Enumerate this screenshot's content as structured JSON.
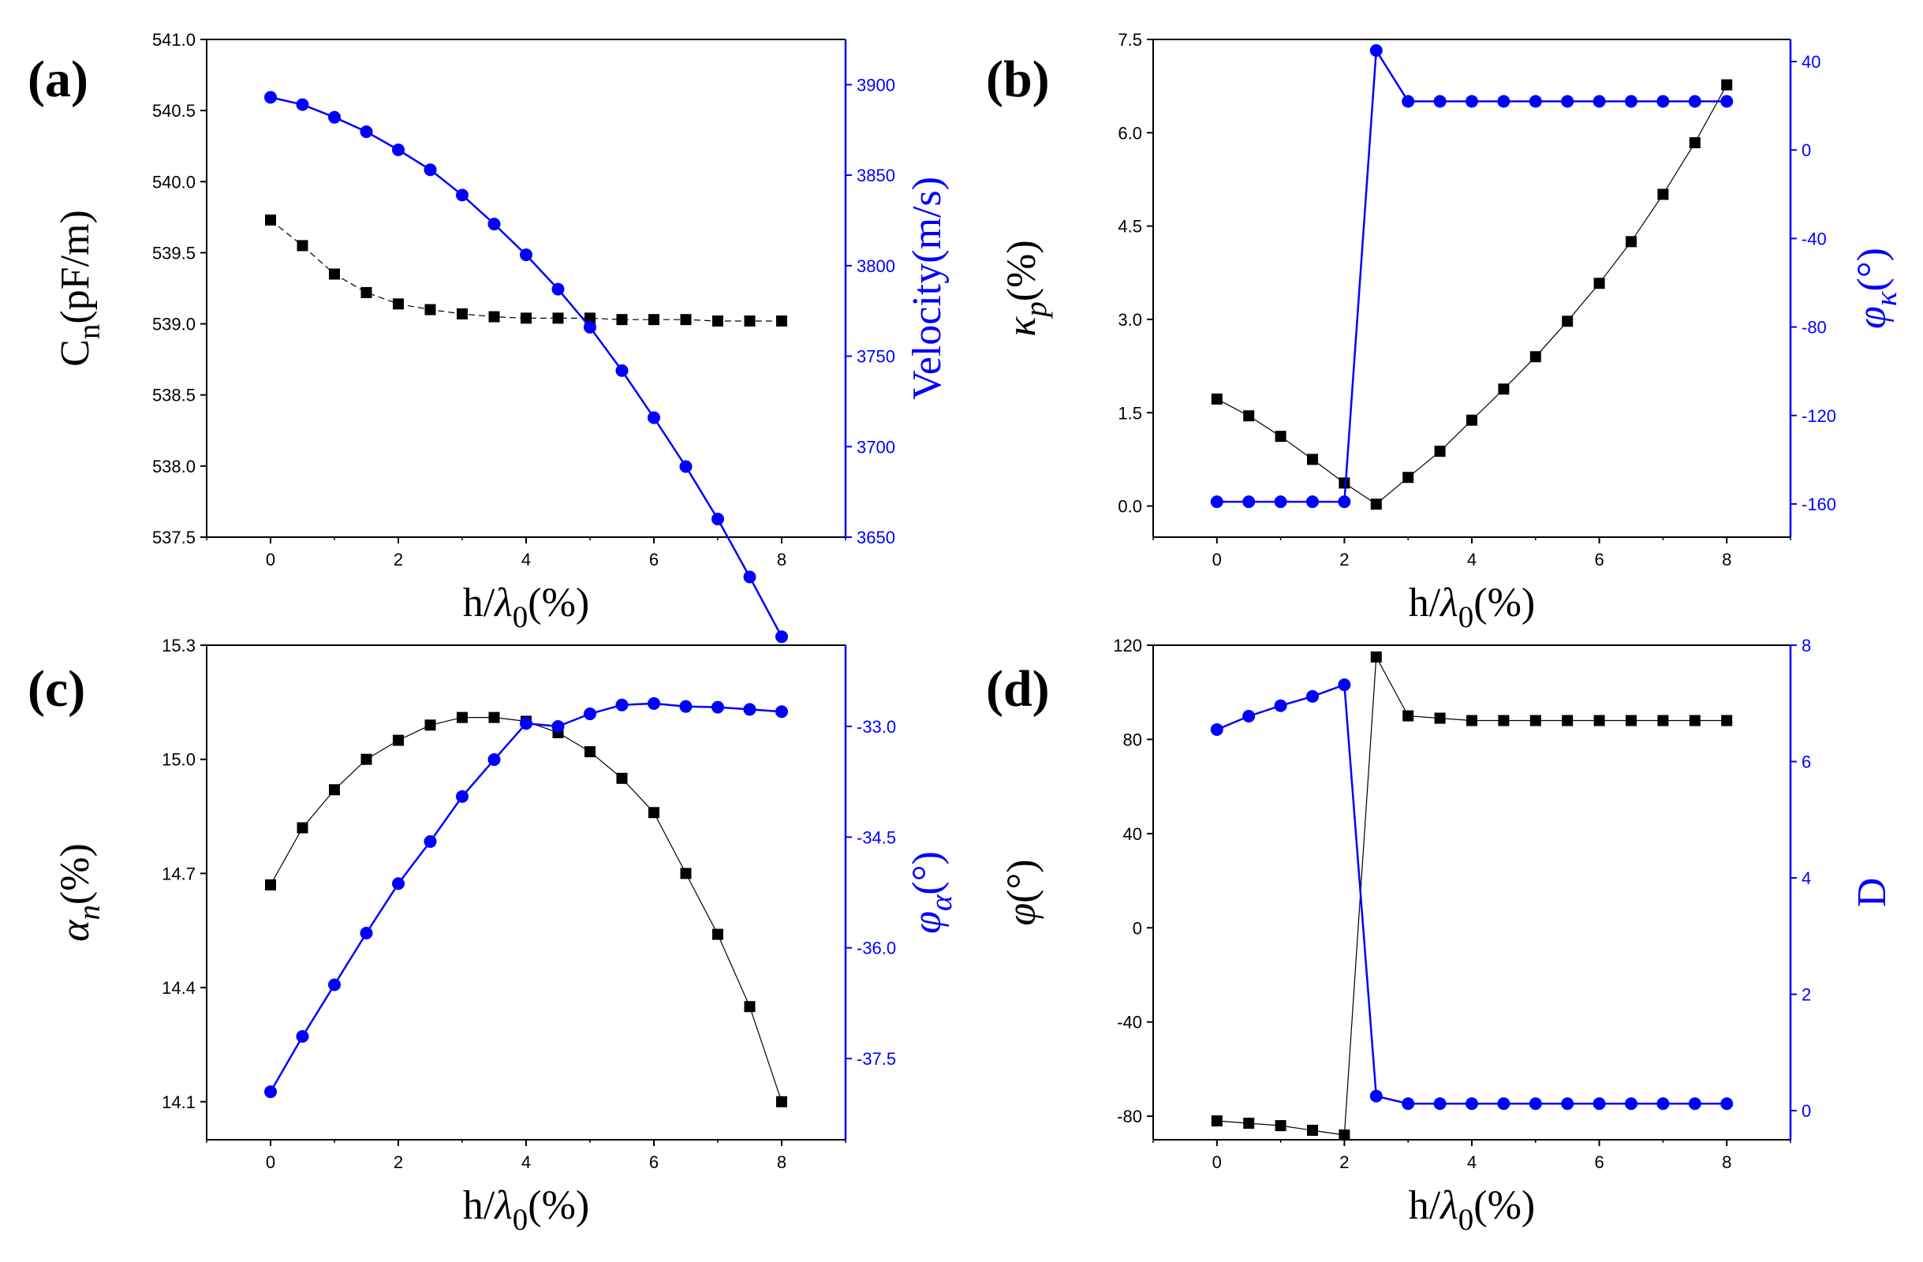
{
  "chart_data": [
    {
      "type": "line",
      "panel_label": "(a)",
      "xlabel": "h/λ0(%)",
      "xlabel_parts": {
        "main": "h/",
        "symbol": "λ",
        "sub": "0",
        "tail": "(%)"
      },
      "xlim": [
        -1,
        9
      ],
      "xticks": [
        "0",
        "2",
        "4",
        "6",
        "8"
      ],
      "x": [
        0,
        0.5,
        1,
        1.5,
        2,
        2.5,
        3,
        3.5,
        4,
        4.5,
        5,
        5.5,
        6,
        6.5,
        7,
        7.5,
        8
      ],
      "left_axis": {
        "label": "Cn(pF/m)",
        "label_parts": {
          "main": "C",
          "sub": "n",
          "tail": "(pF/m)"
        },
        "ylim": [
          537.5,
          541.0
        ],
        "ticks": [
          "537.5",
          "538.0",
          "538.5",
          "539.0",
          "539.5",
          "540.0",
          "540.5",
          "541.0"
        ],
        "color": "#000000"
      },
      "right_axis": {
        "label": "Velocity(m/s)",
        "ylim": [
          3650,
          3925
        ],
        "ticks": [
          "3650",
          "3700",
          "3750",
          "3800",
          "3850",
          "3900"
        ],
        "color": "#0000ff"
      },
      "series": [
        {
          "name": "Cn",
          "axis": "left",
          "marker": "square",
          "color": "#000000",
          "line_dash": "dash",
          "values": [
            539.73,
            539.55,
            539.35,
            539.22,
            539.14,
            539.1,
            539.07,
            539.05,
            539.04,
            539.04,
            539.04,
            539.03,
            539.03,
            539.03,
            539.02,
            539.02,
            539.02
          ]
        },
        {
          "name": "Velocity",
          "axis": "right",
          "marker": "circle",
          "color": "#0000ff",
          "line_dash": "solid",
          "values": [
            3893,
            3889,
            3882,
            3874,
            3864,
            3853,
            3839,
            3823,
            3806,
            3787,
            3766,
            3742,
            3716,
            3689,
            3660,
            3628,
            3595
          ]
        }
      ]
    },
    {
      "type": "line",
      "panel_label": "(b)",
      "xlabel": "h/λ0(%)",
      "xlabel_parts": {
        "main": "h/",
        "symbol": "λ",
        "sub": "0",
        "tail": "(%)"
      },
      "xlim": [
        -1,
        9
      ],
      "xticks": [
        "0",
        "2",
        "4",
        "6",
        "8"
      ],
      "left_axis": {
        "label": "κp(%)",
        "label_parts": {
          "main": "κ",
          "sub": "p",
          "tail": "(%)"
        },
        "ylim": [
          -0.5,
          7.5
        ],
        "ticks": [
          "0.0",
          "1.5",
          "3.0",
          "4.5",
          "6.0",
          "7.5"
        ],
        "color": "#000000"
      },
      "right_axis": {
        "label": "φκ(°)",
        "label_parts": {
          "main": "φ",
          "sub": "κ",
          "tail": "(°)"
        },
        "ylim": [
          -175,
          50
        ],
        "ticks": [
          "-160",
          "-120",
          "-80",
          "-40",
          "0",
          "40"
        ],
        "color": "#0000ff"
      },
      "x": [
        0,
        0.5,
        1,
        1.5,
        2,
        2.5,
        3,
        3.5,
        4,
        4.5,
        5,
        5.5,
        6,
        6.5,
        7,
        7.5,
        8
      ],
      "series": [
        {
          "name": "kappa_p",
          "axis": "left",
          "marker": "square",
          "color": "#000000",
          "line_dash": "solid",
          "values": [
            1.72,
            1.45,
            1.12,
            0.75,
            0.37,
            0.03,
            0.46,
            0.88,
            1.38,
            1.88,
            2.4,
            2.97,
            3.58,
            4.25,
            5.01,
            5.84,
            6.77
          ]
        },
        {
          "name": "phi_kappa",
          "axis": "right",
          "marker": "circle",
          "color": "#0000ff",
          "line_dash": "solid",
          "values": [
            -159,
            -159,
            -159,
            -159,
            -159,
            45,
            22,
            22,
            22,
            22,
            22,
            22,
            22,
            22,
            22,
            22,
            22
          ]
        }
      ]
    },
    {
      "type": "line",
      "panel_label": "(c)",
      "xlabel": "h/λ0(%)",
      "xlabel_parts": {
        "main": "h/",
        "symbol": "λ",
        "sub": "0",
        "tail": "(%)"
      },
      "xlim": [
        -1,
        9
      ],
      "xticks": [
        "0",
        "2",
        "4",
        "6",
        "8"
      ],
      "left_axis": {
        "label": "αn(%)",
        "label_parts": {
          "main": "α",
          "sub": "n",
          "tail": "(%)"
        },
        "ylim": [
          14.0,
          15.3
        ],
        "ticks": [
          "14.1",
          "14.4",
          "14.7",
          "15.0",
          "15.3"
        ],
        "color": "#000000"
      },
      "right_axis": {
        "label": "φα(°)",
        "label_parts": {
          "main": "φ",
          "sub": "α",
          "tail": "(°)"
        },
        "ylim": [
          -38.6,
          -31.9
        ],
        "ticks": [
          "-37.5",
          "-36.0",
          "-34.5",
          "-33.0"
        ],
        "color": "#0000ff"
      },
      "x": [
        0,
        0.5,
        1,
        1.5,
        2,
        2.5,
        3,
        3.5,
        4,
        4.5,
        5,
        5.5,
        6,
        6.5,
        7,
        7.5,
        8
      ],
      "series": [
        {
          "name": "alpha_n",
          "axis": "left",
          "marker": "square",
          "color": "#000000",
          "line_dash": "solid",
          "values": [
            14.67,
            14.82,
            14.92,
            15.0,
            15.05,
            15.09,
            15.11,
            15.11,
            15.1,
            15.07,
            15.02,
            14.95,
            14.86,
            14.7,
            14.54,
            14.35,
            14.1
          ]
        },
        {
          "name": "phi_alpha",
          "axis": "right",
          "marker": "circle",
          "color": "#0000ff",
          "line_dash": "solid",
          "values": [
            -37.95,
            -37.2,
            -36.5,
            -35.8,
            -35.13,
            -34.56,
            -33.95,
            -33.45,
            -32.96,
            -33.0,
            -32.83,
            -32.71,
            -32.69,
            -32.73,
            -32.74,
            -32.77,
            -32.8
          ]
        }
      ]
    },
    {
      "type": "line",
      "panel_label": "(d)",
      "xlabel": "h/λ0(%)",
      "xlabel_parts": {
        "main": "h/",
        "symbol": "λ",
        "sub": "0",
        "tail": "(%)"
      },
      "xlim": [
        -1,
        9
      ],
      "xticks": [
        "0",
        "2",
        "4",
        "6",
        "8"
      ],
      "left_axis": {
        "label": "φ(°)",
        "label_parts": {
          "main": "φ",
          "sub": "",
          "tail": "(°)"
        },
        "ylim": [
          -90,
          120
        ],
        "ticks": [
          "-80",
          "-40",
          "0",
          "40",
          "80",
          "120"
        ],
        "color": "#000000"
      },
      "right_axis": {
        "label": "D",
        "ylim": [
          -0.5,
          8
        ],
        "ticks": [
          "0",
          "2",
          "4",
          "6",
          "8"
        ],
        "color": "#0000ff"
      },
      "x": [
        0,
        0.5,
        1,
        1.5,
        2,
        2.5,
        3,
        3.5,
        4,
        4.5,
        5,
        5.5,
        6,
        6.5,
        7,
        7.5,
        8
      ],
      "series": [
        {
          "name": "phi",
          "axis": "left",
          "marker": "square",
          "color": "#000000",
          "line_dash": "solid",
          "values": [
            -82,
            -83,
            -84,
            -86,
            -88,
            115,
            90,
            89,
            88,
            88,
            88,
            88,
            88,
            88,
            88,
            88,
            88
          ]
        },
        {
          "name": "D",
          "axis": "right",
          "marker": "circle",
          "color": "#0000ff",
          "line_dash": "solid",
          "values": [
            6.55,
            6.78,
            6.96,
            7.12,
            7.32,
            0.25,
            0.12,
            0.12,
            0.12,
            0.12,
            0.12,
            0.12,
            0.12,
            0.12,
            0.12,
            0.12,
            0.12
          ]
        }
      ]
    }
  ]
}
